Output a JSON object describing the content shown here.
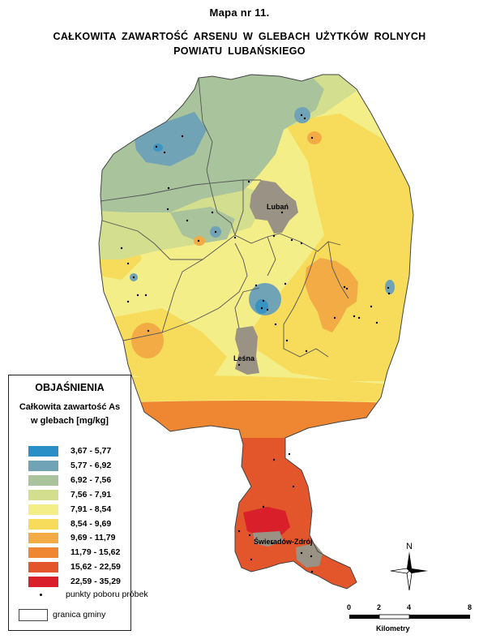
{
  "title": {
    "line1": "Mapa nr 11.",
    "line2": "CAŁKOWITA  ZAWARTOŚĆ  ARSENU W  GLEBACH  UŻYTKÓW  ROLNYCH",
    "line3": "POWIATU  LUBAŃSKIEGO"
  },
  "legend": {
    "title": "OBJAŚNIENIA",
    "subtitle_line1": "Całkowita zawartość As",
    "subtitle_line2": "w glebach [mg/kg]",
    "classes": [
      {
        "label": "3,67 - 5,77",
        "color": "#2b8fc7"
      },
      {
        "label": "5,77 - 6,92",
        "color": "#6fa3b5"
      },
      {
        "label": "6,92 - 7,56",
        "color": "#a9c49c"
      },
      {
        "label": "7,56 - 7,91",
        "color": "#d3df8f"
      },
      {
        "label": "7,91 - 8,54",
        "color": "#f4ee88"
      },
      {
        "label": "8,54 - 9,69",
        "color": "#f6dc5a"
      },
      {
        "label": "9,69 - 11,79",
        "color": "#f3ab45"
      },
      {
        "label": "11,79 - 15,62",
        "color": "#ee8632"
      },
      {
        "label": "15,62 - 22,59",
        "color": "#e3552b"
      },
      {
        "label": "22,59 - 35,29",
        "color": "#d9202a"
      }
    ],
    "points_label": "punkty poboru próbek",
    "border_label": "granica gminy"
  },
  "cities": {
    "luban": "Lubań",
    "lesna": "Leśna",
    "swieradow": "Świeradów-Zdrój"
  },
  "north_label": "N",
  "scale": {
    "ticks": [
      "0",
      "2",
      "4",
      "8"
    ],
    "unit": "Kilometry"
  },
  "colors": {
    "urban": "#9a9285",
    "boundary": "#555555"
  }
}
